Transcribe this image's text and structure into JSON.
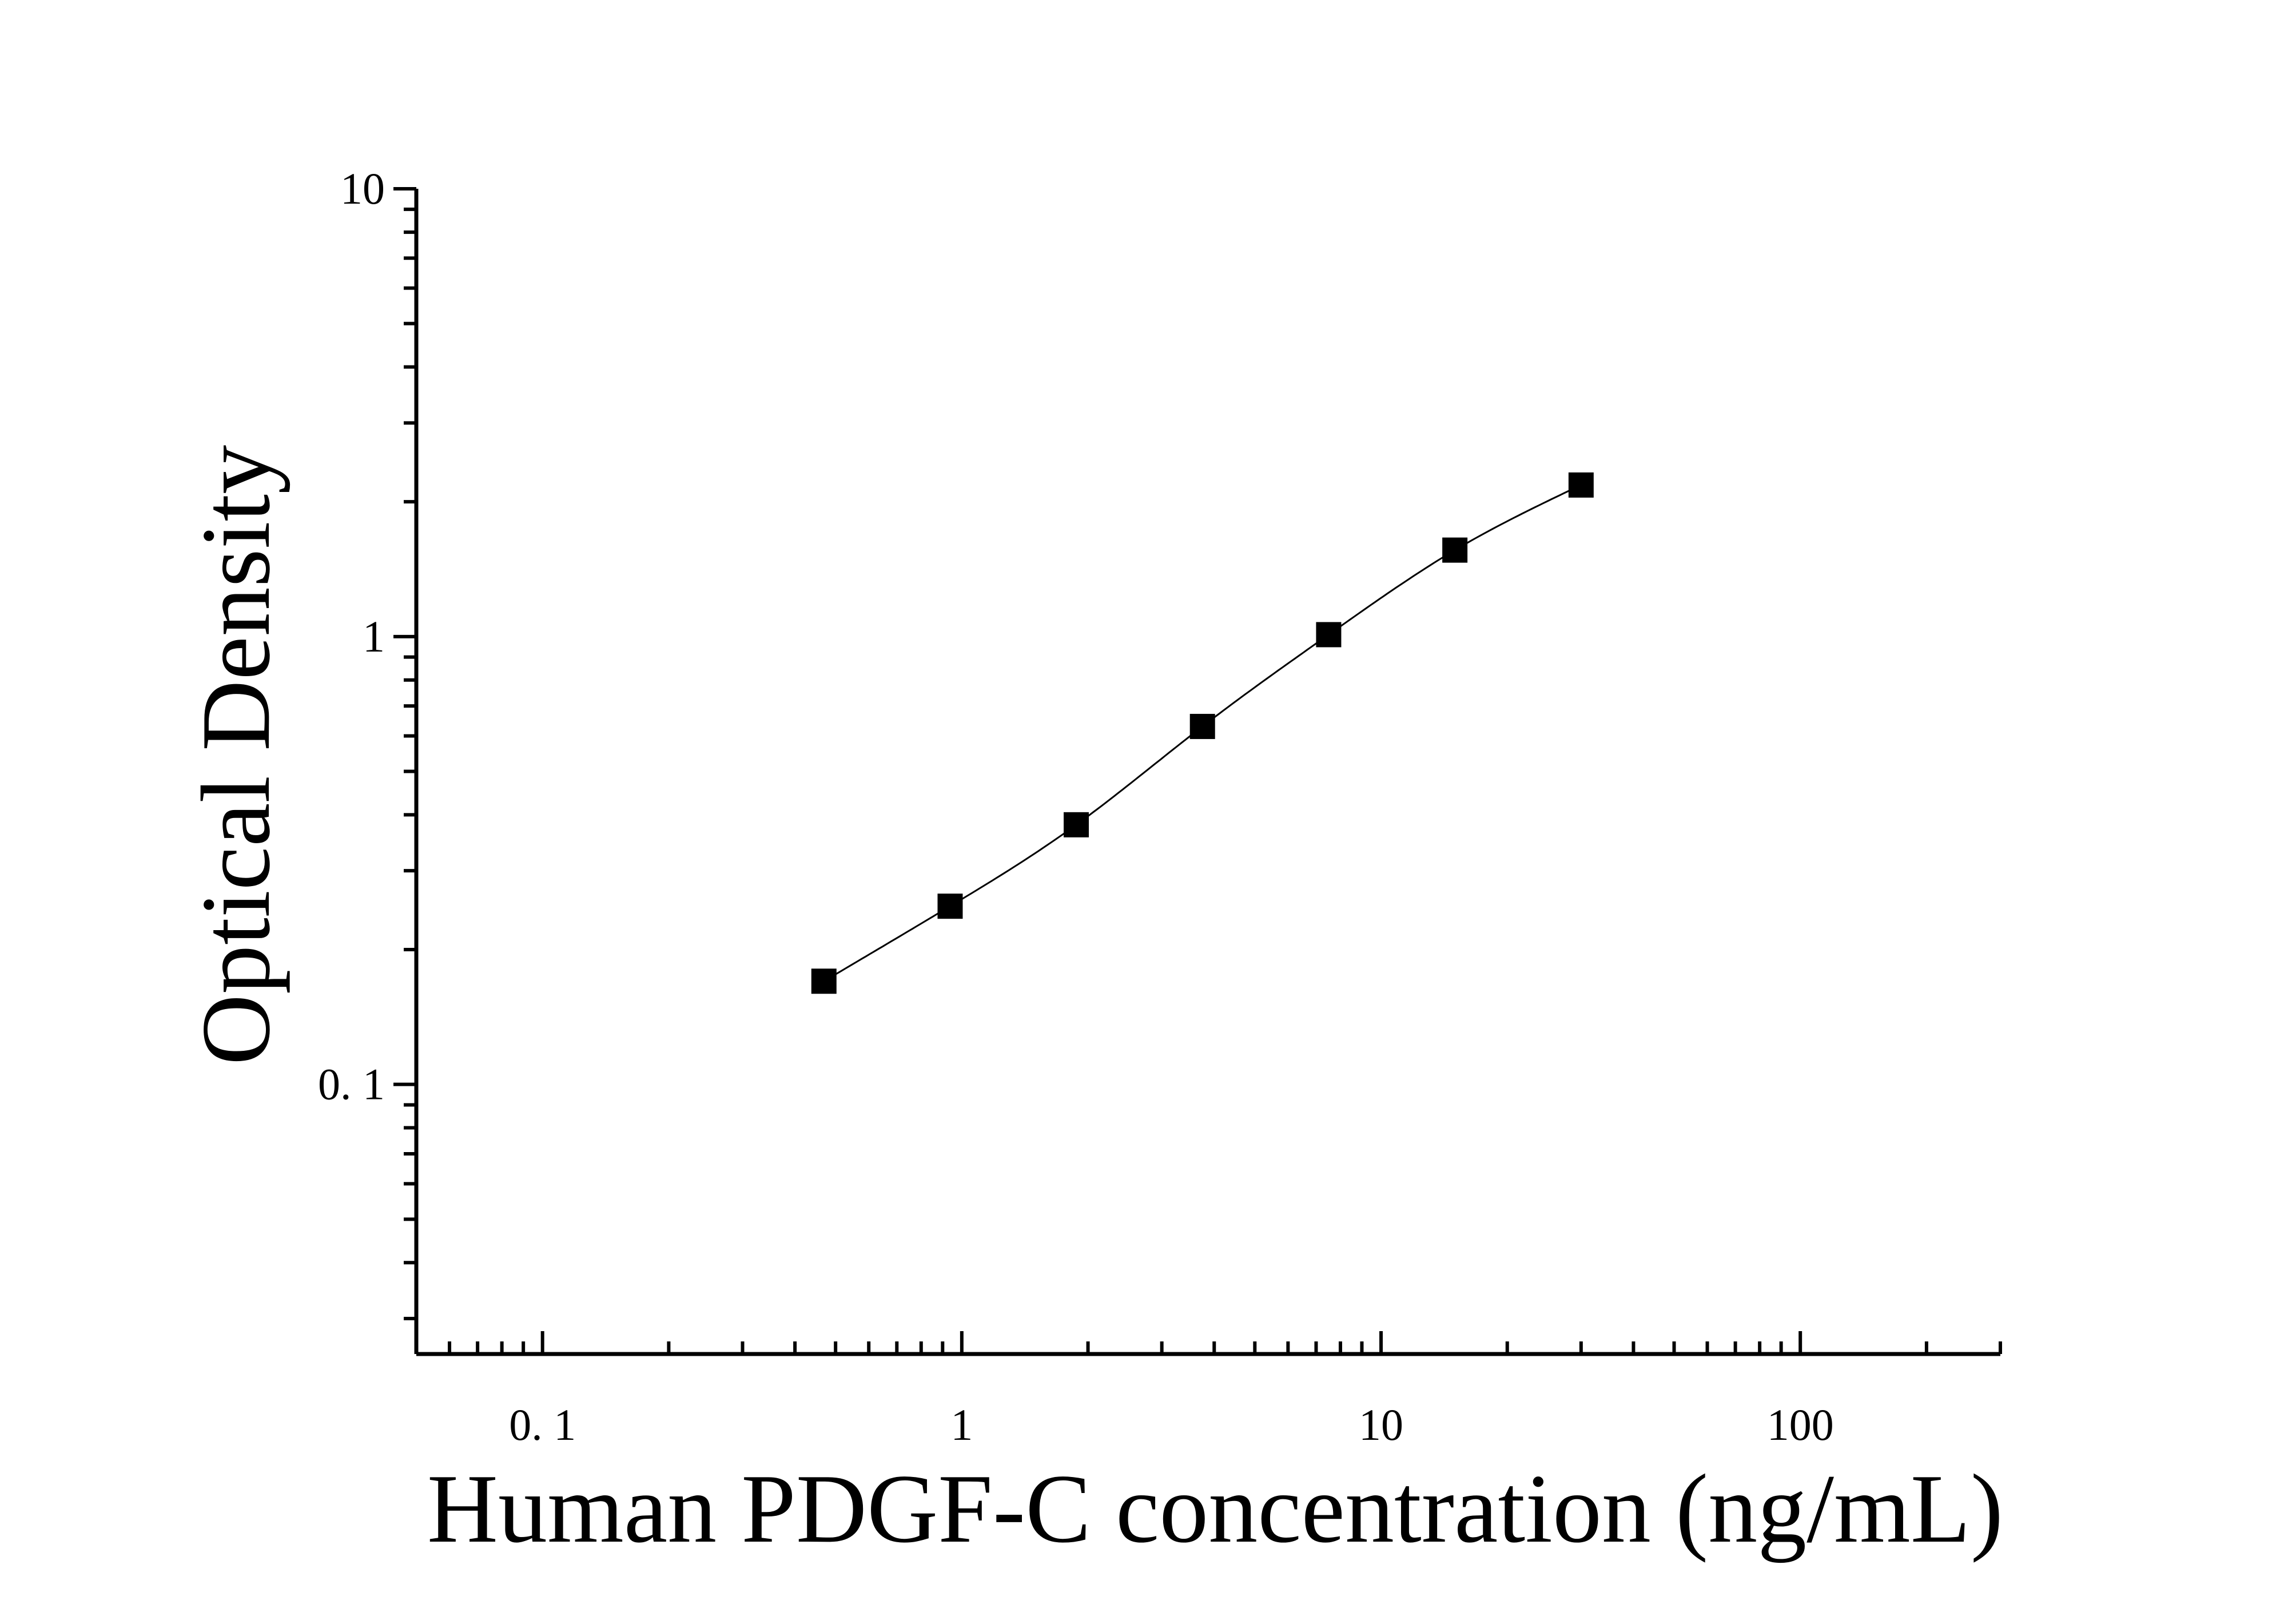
{
  "chart_data": {
    "type": "scatter",
    "xlabel": "Human PDGF-C concentration (ng/mL)",
    "ylabel": "Optical Density",
    "xscale": "log",
    "yscale": "log",
    "xlim": [
      0.05,
      300
    ],
    "ylim": [
      0.025,
      10
    ],
    "x_ticks": [
      {
        "value": 0.1,
        "label": "0. 1"
      },
      {
        "value": 1,
        "label": "1"
      },
      {
        "value": 10,
        "label": "10"
      },
      {
        "value": 100,
        "label": "100"
      }
    ],
    "y_ticks": [
      {
        "value": 0.1,
        "label": "0. 1"
      },
      {
        "value": 1,
        "label": "1"
      },
      {
        "value": 10,
        "label": "10"
      }
    ],
    "grid": false,
    "legend": "none",
    "marker": "square",
    "fit_line": true,
    "color": "#000000",
    "series": [
      {
        "x": [
          0.469,
          0.938,
          1.875,
          3.75,
          7.5,
          15,
          30
        ],
        "y": [
          0.17,
          0.25,
          0.38,
          0.63,
          1.01,
          1.56,
          2.18
        ]
      }
    ]
  }
}
